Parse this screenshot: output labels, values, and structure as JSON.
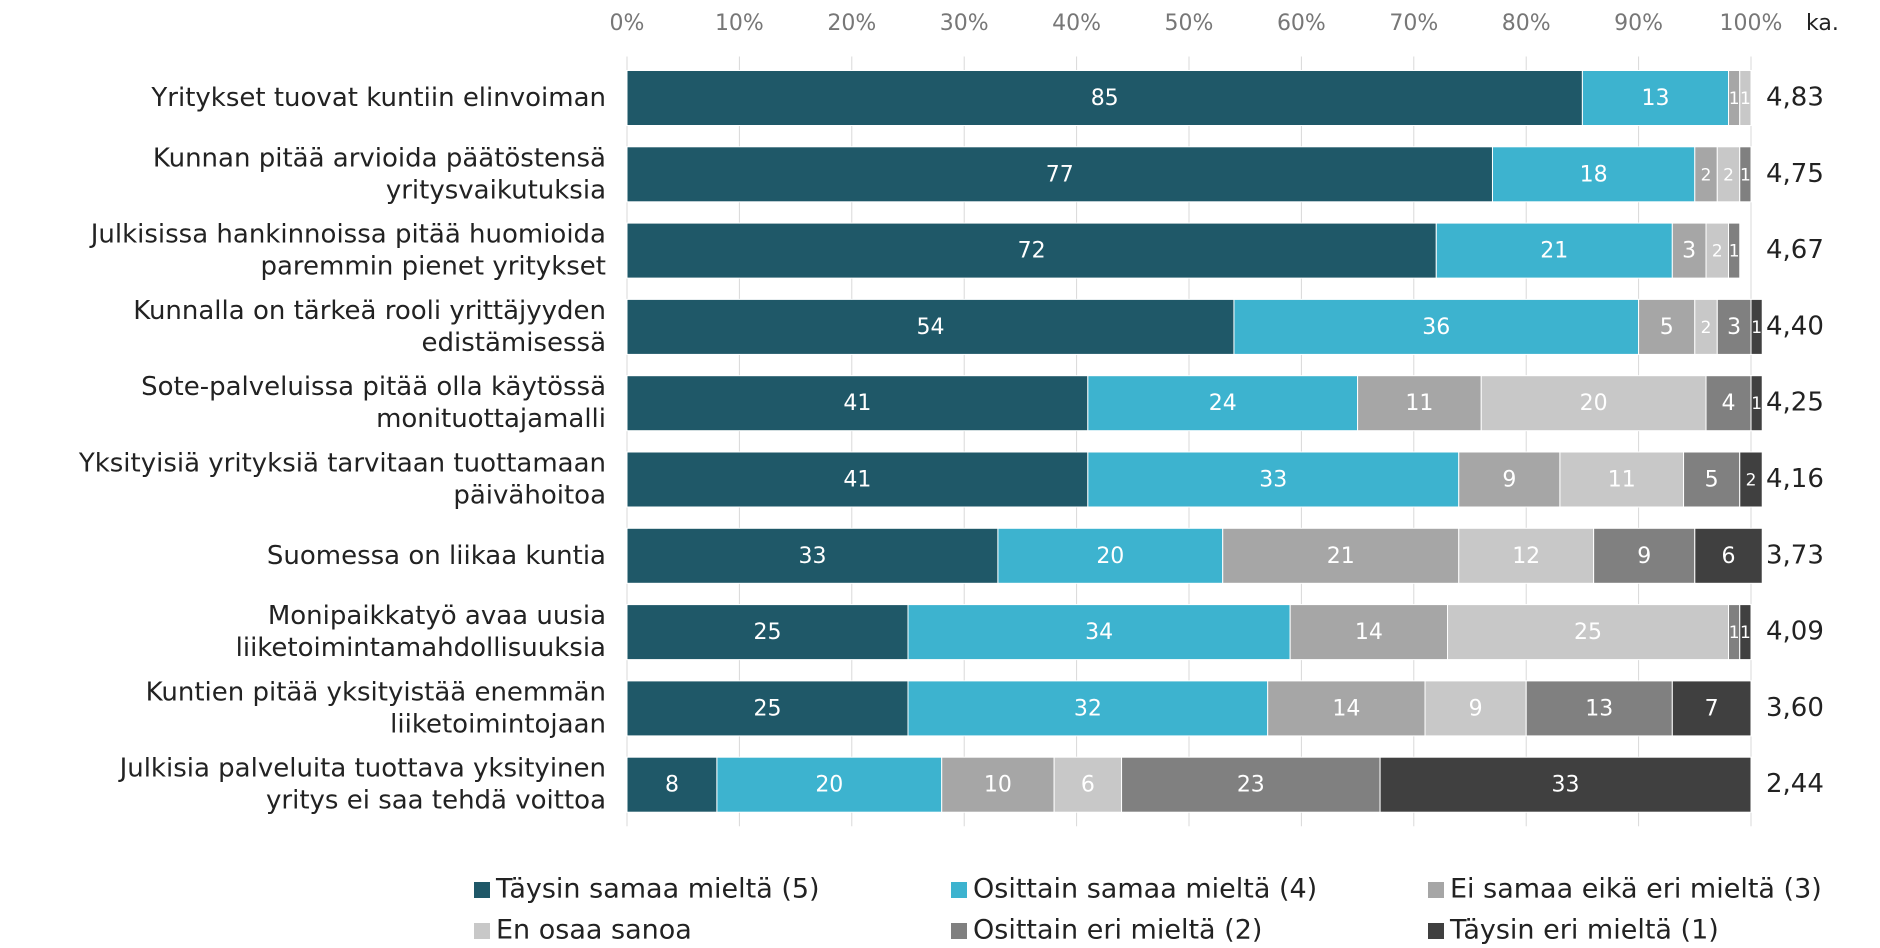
{
  "chart_data": {
    "type": "stacked_bar_horizontal",
    "categories": [
      "Yritykset tuovat kuntiin elinvoiman",
      "Kunnan pitää arvioida päätöstensä\nyritysvaikutuksia",
      "Julkisissa hankinnoissa pitää huomioida\nparemmin pienet yritykset",
      "Kunnalla on tärkeä rooli yrittäjyyden\nedistämisessä",
      "Sote-palveluissa pitää olla käytössä\nmonituottajamalli",
      "Yksityisiä yrityksiä tarvitaan tuottamaan\npäivähoitoa",
      "Suomessa on liikaa kuntia",
      "Monipaikkatyö avaa uusia\nliiketoimintamahdollisuuksia",
      "Kuntien pitää yksityistää enemmän\nliiketoimintojaan",
      "Julkisia palveluita tuottava yksityinen\nyritys ei saa tehdä voittoa"
    ],
    "series": [
      {
        "name": "Täysin samaa mieltä (5)",
        "color": "#1f5868",
        "values": [
          85,
          77,
          72,
          54,
          41,
          41,
          33,
          25,
          25,
          8
        ]
      },
      {
        "name": "Osittain samaa mieltä (4)",
        "color": "#3db3cf",
        "values": [
          13,
          18,
          21,
          36,
          24,
          33,
          20,
          34,
          32,
          20
        ]
      },
      {
        "name": "Ei samaa eikä eri mieltä (3)",
        "color": "#a6a6a6",
        "values": [
          1,
          2,
          3,
          5,
          11,
          9,
          21,
          14,
          14,
          10
        ]
      },
      {
        "name": "En osaa sanoa",
        "color": "#c8c8c8",
        "values": [
          1,
          2,
          2,
          2,
          20,
          11,
          12,
          25,
          9,
          6
        ]
      },
      {
        "name": "Osittain eri mieltä (2)",
        "color": "#808080",
        "values": [
          0,
          1,
          1,
          3,
          4,
          5,
          9,
          1,
          13,
          23
        ]
      },
      {
        "name": "Täysin eri mieltä (1)",
        "color": "#404040",
        "values": [
          0,
          0,
          0,
          1,
          1,
          2,
          6,
          1,
          7,
          33
        ]
      }
    ],
    "average_header": "ka.",
    "averages": [
      4.83,
      4.75,
      4.67,
      4.4,
      4.25,
      4.16,
      3.73,
      4.09,
      3.6,
      2.44
    ],
    "average_labels": [
      "4,83",
      "4,75",
      "4,67",
      "4,40",
      "4,25",
      "4,16",
      "3,73",
      "4,09",
      "3,60",
      "2,44"
    ],
    "xlim": [
      0,
      100
    ],
    "xticks": [
      {
        "value": 0,
        "label": "0%"
      },
      {
        "value": 10,
        "label": "10%"
      },
      {
        "value": 20,
        "label": "20%"
      },
      {
        "value": 30,
        "label": "30%"
      },
      {
        "value": 40,
        "label": "40%"
      },
      {
        "value": 50,
        "label": "50%"
      },
      {
        "value": 60,
        "label": "60%"
      },
      {
        "value": 70,
        "label": "70%"
      },
      {
        "value": 80,
        "label": "80%"
      },
      {
        "value": 90,
        "label": "90%"
      },
      {
        "value": 100,
        "label": "100%"
      }
    ],
    "grid": true,
    "legend": "bottom"
  }
}
